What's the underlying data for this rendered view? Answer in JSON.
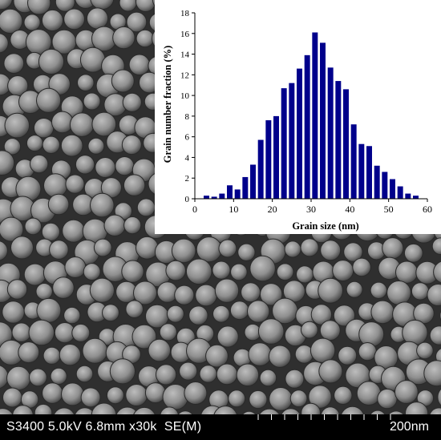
{
  "micrograph": {
    "info_text": "S3400 5.0kV 6.8mm x30k  SE(M)",
    "scale_label": "200nm"
  },
  "chart_data": {
    "type": "bar",
    "title": "",
    "xlabel": "Grain size (nm)",
    "ylabel": "Grain number fraction (%)",
    "xlim": [
      0,
      60
    ],
    "ylim": [
      0,
      18
    ],
    "x_ticks": [
      0,
      10,
      20,
      30,
      40,
      50,
      60
    ],
    "y_ticks": [
      0,
      2,
      4,
      6,
      8,
      10,
      12,
      14,
      16,
      18
    ],
    "bar_color": "#00008b",
    "x": [
      3,
      5,
      7,
      9,
      11,
      13,
      15,
      17,
      19,
      21,
      23,
      25,
      27,
      29,
      31,
      33,
      35,
      37,
      39,
      41,
      43,
      45,
      47,
      49,
      51,
      53,
      55,
      57
    ],
    "values": [
      0.3,
      0.2,
      0.5,
      1.3,
      0.9,
      2.1,
      3.3,
      5.7,
      7.6,
      8.0,
      10.7,
      11.2,
      12.6,
      13.9,
      16.1,
      15.1,
      12.7,
      11.4,
      10.6,
      7.2,
      5.3,
      5.1,
      3.2,
      2.6,
      1.9,
      1.2,
      0.5,
      0.3
    ],
    "grid": false,
    "legend": "none"
  }
}
